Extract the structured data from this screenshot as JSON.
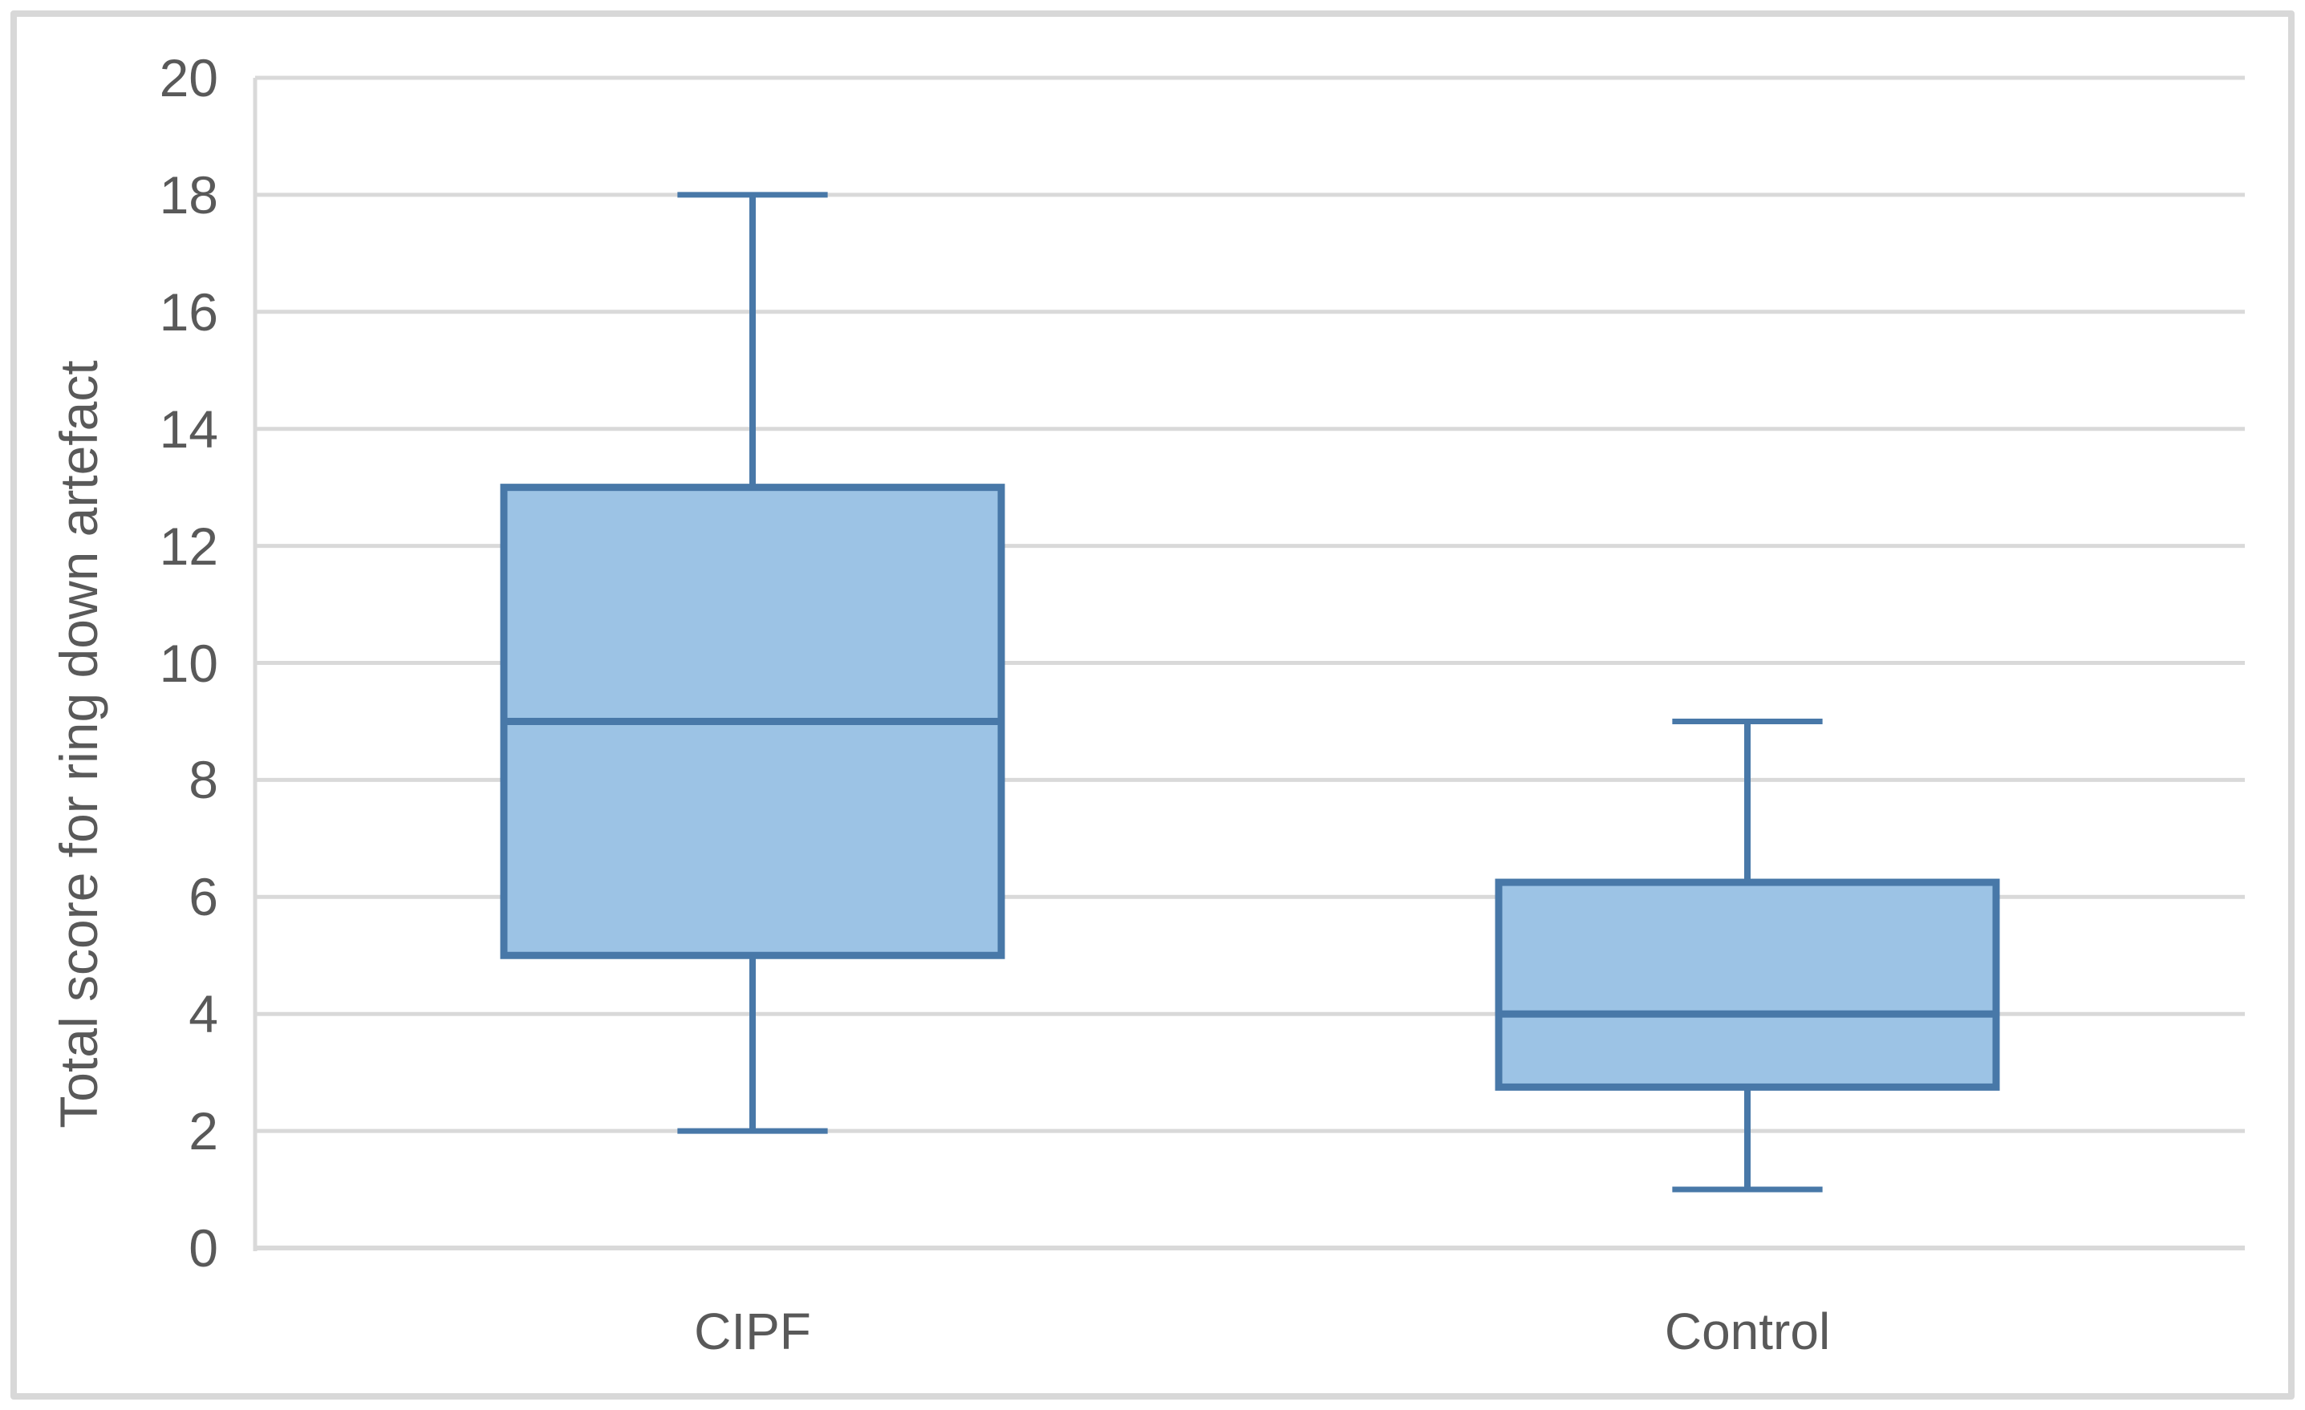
{
  "chart_data": {
    "type": "box",
    "title": "",
    "ylabel": "Total score for ring down artefact",
    "xlabel": "",
    "categories": [
      "CIPF",
      "Control"
    ],
    "series": [
      {
        "name": "CIPF",
        "min": 2,
        "q1": 5,
        "median": 9,
        "q3": 13,
        "max": 18
      },
      {
        "name": "Control",
        "min": 1,
        "q1": 2.75,
        "median": 4,
        "q3": 6.25,
        "max": 9
      }
    ],
    "ylim": [
      0,
      20
    ],
    "yticks": [
      0,
      2,
      4,
      6,
      8,
      10,
      12,
      14,
      16,
      18,
      20
    ],
    "grid": "horizontal",
    "legend": "none",
    "colors": {
      "box_fill": "#9CC3E5",
      "box_stroke": "#4878A8",
      "gridline": "#D9D9D9",
      "axis_line": "#D9D9D9",
      "text": "#595959",
      "frame": "#D8D8D8",
      "background": "#FFFFFF"
    }
  }
}
